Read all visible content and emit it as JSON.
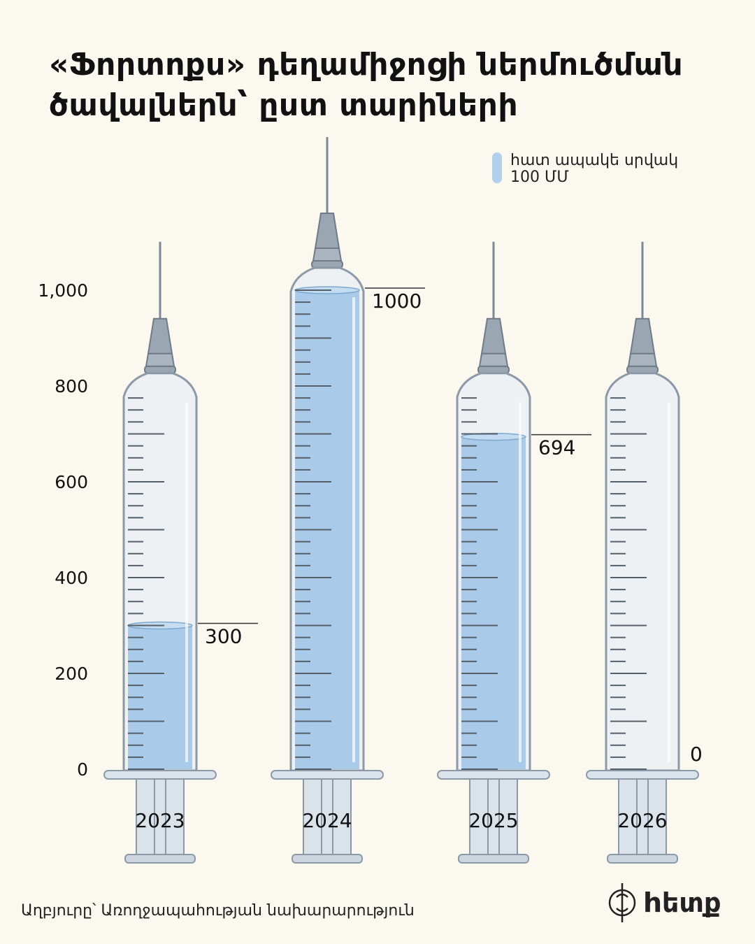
{
  "title": "«Ֆորտոքս» դեղամիջոցի ներմուծման ծավալներն՝ ըստ տարիների",
  "legend": {
    "line1": "հատ ապակե սրվակ",
    "line2": "100 ՄՄ"
  },
  "source": "Աղբյուրը՝ Առողջապահության նախարարություն",
  "logo": {
    "name": "hետք"
  },
  "colors": {
    "fill": "#a9cbe9",
    "glass": "#eef1f4",
    "outline": "#8c99a6",
    "background": "#fbf8ef"
  },
  "chart_data": {
    "type": "bar",
    "title": "«Ֆորտոքս» դեղամիջոցի ներմուծման ծավալներն՝ ըստ տարիների",
    "categories": [
      "2023",
      "2024",
      "2025",
      "2026"
    ],
    "values": [
      300,
      1000,
      694,
      0
    ],
    "value_labels": [
      "300",
      "1000",
      "694",
      "0"
    ],
    "yticks": [
      "0",
      "200",
      "400",
      "600",
      "800",
      "1,000"
    ],
    "ytick_values": [
      0,
      200,
      400,
      600,
      800,
      1000
    ],
    "ylim": [
      0,
      1000
    ],
    "syringe_capacity": [
      780,
      1000,
      780,
      780
    ],
    "grid": false,
    "legend_position": "top-right"
  }
}
